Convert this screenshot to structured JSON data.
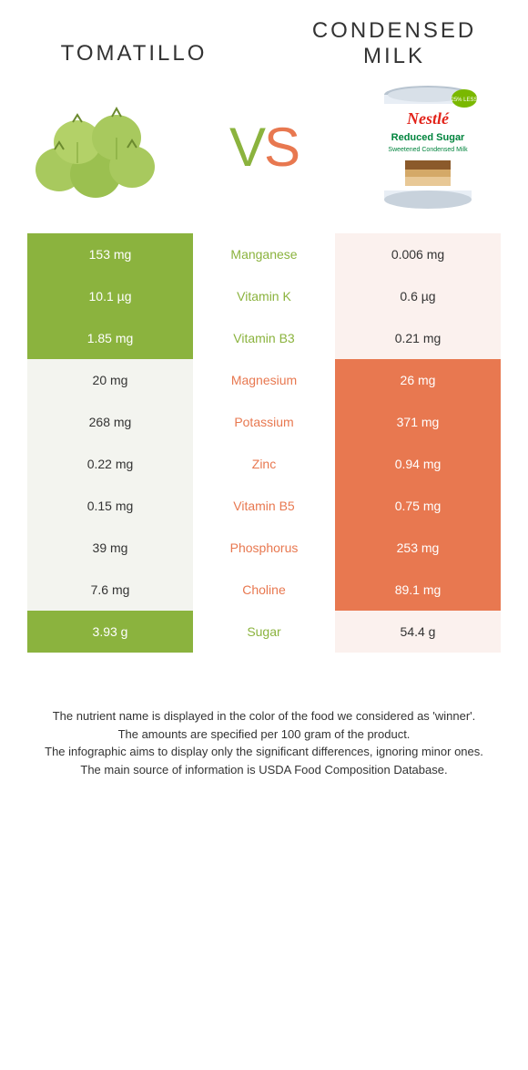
{
  "header": {
    "left_title": "Tomatillo",
    "right_title": "Condensed Milk",
    "vs_v": "V",
    "vs_s": "S"
  },
  "colors": {
    "green_full": "#8bb33e",
    "green_pale": "#f3f4ef",
    "orange_full": "#e87850",
    "orange_pale": "#fbf1ee",
    "text": "#333333",
    "white": "#ffffff"
  },
  "table": {
    "rows": [
      {
        "left": "153 mg",
        "label": "Manganese",
        "right": "0.006 mg",
        "winner": "left"
      },
      {
        "left": "10.1 µg",
        "label": "Vitamin K",
        "right": "0.6 µg",
        "winner": "left"
      },
      {
        "left": "1.85 mg",
        "label": "Vitamin B3",
        "right": "0.21 mg",
        "winner": "left"
      },
      {
        "left": "20 mg",
        "label": "Magnesium",
        "right": "26 mg",
        "winner": "right"
      },
      {
        "left": "268 mg",
        "label": "Potassium",
        "right": "371 mg",
        "winner": "right"
      },
      {
        "left": "0.22 mg",
        "label": "Zinc",
        "right": "0.94 mg",
        "winner": "right"
      },
      {
        "left": "0.15 mg",
        "label": "Vitamin B5",
        "right": "0.75 mg",
        "winner": "right"
      },
      {
        "left": "39 mg",
        "label": "Phosphorus",
        "right": "253 mg",
        "winner": "right"
      },
      {
        "left": "7.6 mg",
        "label": "Choline",
        "right": "89.1 mg",
        "winner": "right"
      },
      {
        "left": "3.93 g",
        "label": "Sugar",
        "right": "54.4 g",
        "winner": "left"
      }
    ]
  },
  "footer": {
    "line1": "The nutrient name is displayed in the color of the food we considered as 'winner'.",
    "line2": "The amounts are specified per 100 gram of the product.",
    "line3": "The infographic aims to display only the significant differences, ignoring minor ones.",
    "line4": "The main source of information is USDA Food Composition Database."
  },
  "illustrations": {
    "tomatillo_fill": "#a8c95e",
    "tomatillo_dark": "#7da336",
    "can_body": "#e8eef5",
    "can_rim": "#b8c4d0",
    "can_label_top": "#ffffff",
    "can_label_accent": "#00843d",
    "can_brand": "Nestlé",
    "can_text1": "Reduced Sugar",
    "can_text2": "Sweetened Condensed Milk"
  }
}
